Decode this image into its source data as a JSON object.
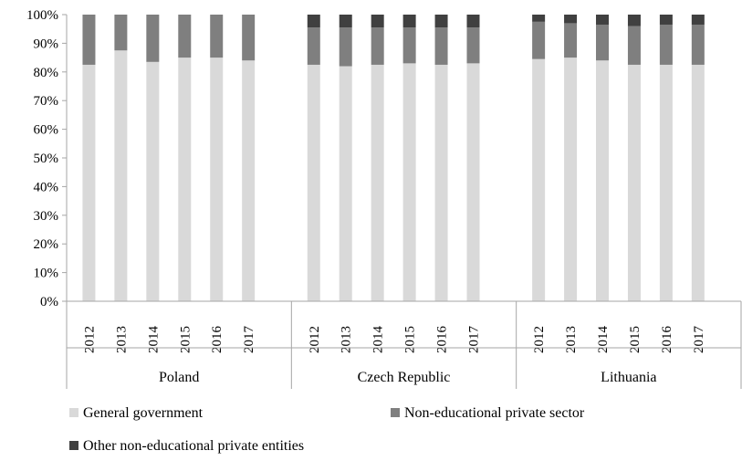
{
  "chart_data": {
    "type": "bar",
    "stacked": true,
    "percent_stacked": true,
    "y_ticks": [
      "0%",
      "10%",
      "20%",
      "30%",
      "40%",
      "50%",
      "60%",
      "70%",
      "80%",
      "90%",
      "100%"
    ],
    "ylim": [
      0,
      100
    ],
    "groups": [
      {
        "name": "Poland",
        "categories": [
          "2012",
          "2013",
          "2014",
          "2015",
          "2016",
          "2017"
        ],
        "series": [
          {
            "name": "General government",
            "values": [
              82.5,
              87.5,
              83.5,
              85,
              85,
              84
            ]
          },
          {
            "name": "Non-educational private sector",
            "values": [
              17.5,
              12.5,
              16.5,
              15,
              15,
              16
            ]
          },
          {
            "name": "Other non-educational private entities",
            "values": [
              0,
              0,
              0,
              0,
              0,
              0
            ]
          }
        ]
      },
      {
        "name": "Czech Republic",
        "categories": [
          "2012",
          "2013",
          "2014",
          "2015",
          "2016",
          "2017"
        ],
        "series": [
          {
            "name": "General government",
            "values": [
              82.5,
              82,
              82.5,
              83,
              82.5,
              83
            ]
          },
          {
            "name": "Non-educational private sector",
            "values": [
              13,
              13.5,
              13,
              12.5,
              13,
              12.5
            ]
          },
          {
            "name": "Other non-educational private entities",
            "values": [
              4.5,
              4.5,
              4.5,
              4.5,
              4.5,
              4.5
            ]
          }
        ]
      },
      {
        "name": "Lithuania",
        "categories": [
          "2012",
          "2013",
          "2014",
          "2015",
          "2016",
          "2017"
        ],
        "series": [
          {
            "name": "General government",
            "values": [
              84.5,
              85,
              84,
              82.5,
              82.5,
              82.5
            ]
          },
          {
            "name": "Non-educational private sector",
            "values": [
              13,
              12,
              12.5,
              13.5,
              14,
              14
            ]
          },
          {
            "name": "Other non-educational private entities",
            "values": [
              2.5,
              3,
              3.5,
              4,
              3.5,
              3.5
            ]
          }
        ]
      }
    ],
    "legend": {
      "position": "bottom",
      "items": [
        {
          "name": "General government",
          "color": "#d9d9d9"
        },
        {
          "name": "Non-educational private sector",
          "color": "#7f7f7f"
        },
        {
          "name": "Other non-educational private entities",
          "color": "#404040"
        }
      ]
    },
    "grid": false,
    "colors": {
      "axis": "#a6a6a6",
      "text": "#000000"
    }
  }
}
